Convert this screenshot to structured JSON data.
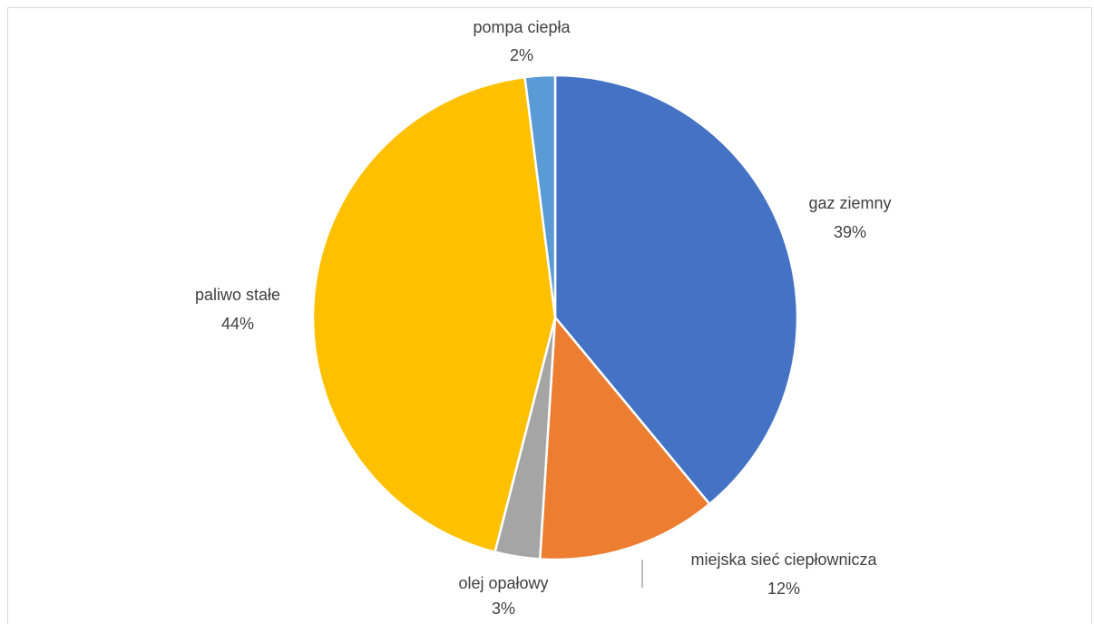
{
  "chart_data": {
    "type": "pie",
    "title": "",
    "slices": [
      {
        "label": "gaz ziemny",
        "value": 39,
        "percent_label": "39%",
        "color": "#4472C4"
      },
      {
        "label": "miejska sieć ciepłownicza",
        "value": 12,
        "percent_label": "12%",
        "color": "#ED7D31"
      },
      {
        "label": "olej opałowy",
        "value": 3,
        "percent_label": "3%",
        "color": "#A5A5A5"
      },
      {
        "label": "paliwo stałe",
        "value": 44,
        "percent_label": "44%",
        "color": "#FFC000"
      },
      {
        "label": "pompa ciepła",
        "value": 2,
        "percent_label": "2%",
        "color": "#5B9BD5"
      }
    ],
    "start_angle_deg": 0,
    "direction": "clockwise",
    "slice_border_color": "#FFFFFF",
    "leader_line_color": "#A6A6A6",
    "legend": "none"
  }
}
